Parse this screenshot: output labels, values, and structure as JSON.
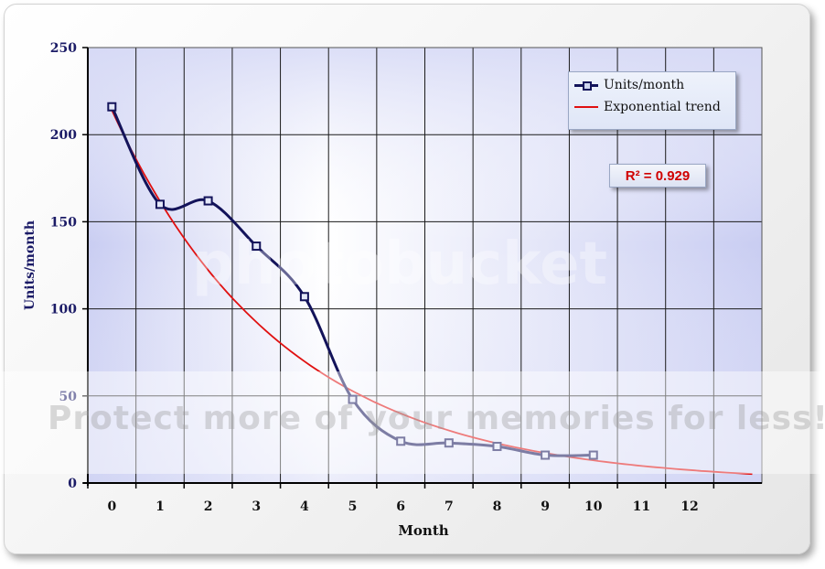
{
  "chart_data": {
    "type": "line",
    "xlabel": "Month",
    "ylabel": "Units/month",
    "x_ticks": [
      "0",
      "1",
      "2",
      "3",
      "4",
      "5",
      "6",
      "7",
      "8",
      "9",
      "10",
      "11",
      "12"
    ],
    "y_ticks": [
      "0",
      "50",
      "100",
      "150",
      "200",
      "250"
    ],
    "xlim": [
      -0.5,
      13.5
    ],
    "ylim": [
      0,
      250
    ],
    "grid": true,
    "legend_position": "top-right",
    "series": [
      {
        "name": "Units/month",
        "color": "#13135a",
        "marker": "square",
        "x": [
          0,
          1,
          2,
          3,
          4,
          5,
          6,
          7,
          8,
          9,
          10
        ],
        "values": [
          216,
          160,
          162,
          136,
          107,
          48,
          24,
          23,
          21,
          16,
          16
        ]
      },
      {
        "name": "Exponential trend",
        "color": "#e01010",
        "fit": {
          "a": 214,
          "b": -0.28
        },
        "x_range": [
          0,
          13.3
        ]
      }
    ],
    "annotation": "R² = 0.929"
  },
  "watermark": {
    "text": "Protect more of your memories for less!",
    "logo": "photobucket"
  }
}
